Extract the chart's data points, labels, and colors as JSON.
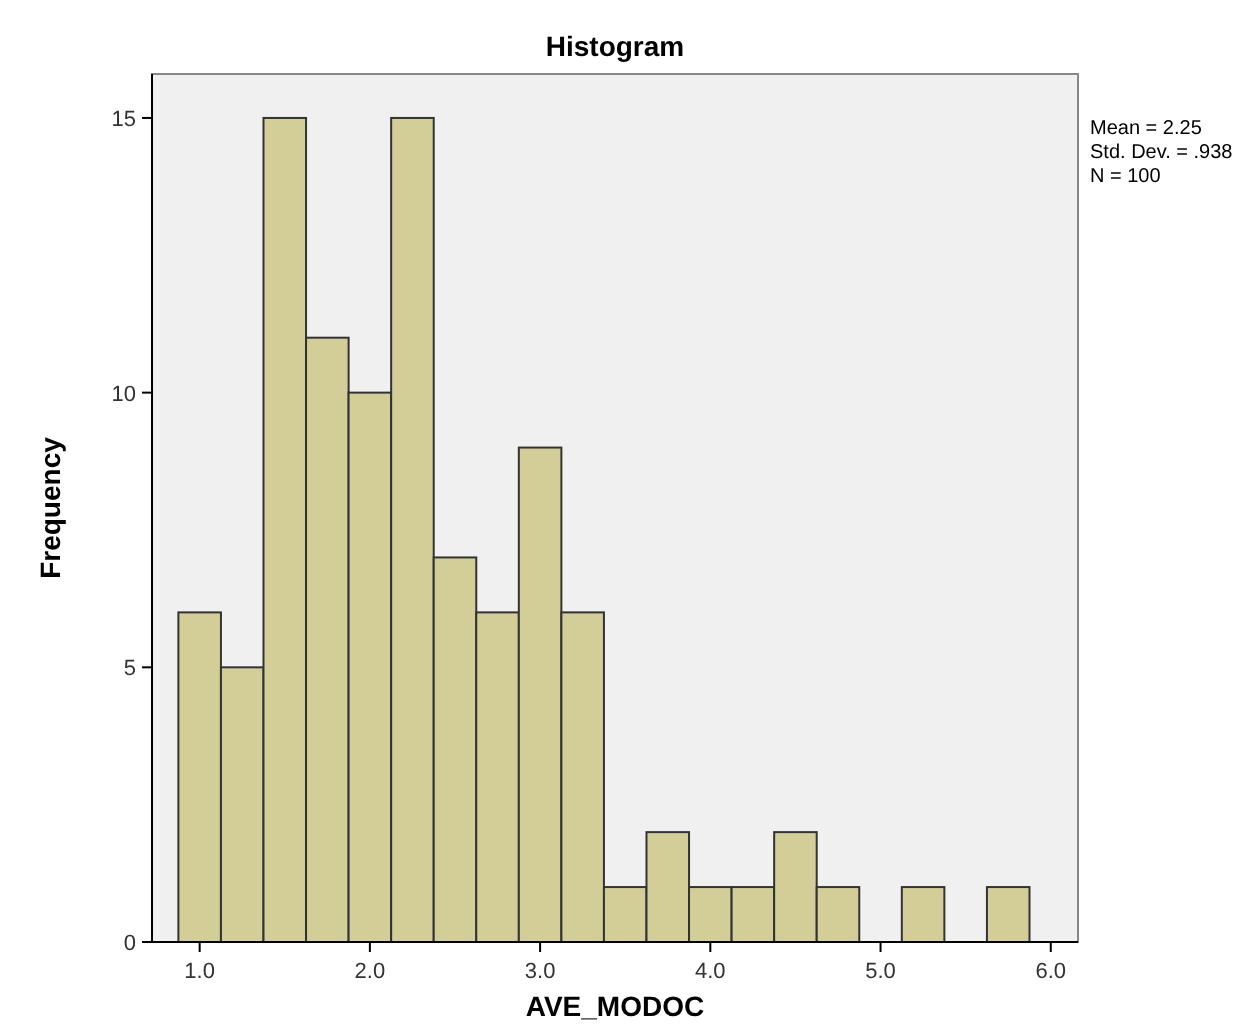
{
  "chart_data": {
    "type": "histogram",
    "title": "Histogram",
    "xlabel": "AVE_MODOC",
    "ylabel": "Frequency",
    "bins": [
      0.875,
      1.125,
      1.375,
      1.625,
      1.875,
      2.125,
      2.375,
      2.625,
      2.875,
      3.125,
      3.375,
      3.625,
      3.875,
      4.125,
      4.375,
      4.625,
      4.875,
      5.125,
      5.375,
      5.625,
      5.875
    ],
    "values": [
      6,
      5,
      15,
      11,
      10,
      15,
      7,
      6,
      9,
      6,
      1,
      2,
      1,
      1,
      2,
      1,
      0,
      1,
      0,
      1
    ],
    "color": "#d3ce97",
    "xlim": [
      0.72,
      6.16
    ],
    "ylim": [
      0,
      15.8
    ],
    "xticks": [
      {
        "value": 1,
        "label": "1.0"
      },
      {
        "value": 2,
        "label": "2.0"
      },
      {
        "value": 3,
        "label": "3.0"
      },
      {
        "value": 4,
        "label": "4.0"
      },
      {
        "value": 5,
        "label": "5.0"
      },
      {
        "value": 6,
        "label": "6.0"
      }
    ],
    "yticks": [
      0,
      5,
      10,
      15
    ],
    "grid": false,
    "annotations": [
      "Mean = 2.25",
      "Std. Dev. = .938",
      "N = 100"
    ]
  }
}
